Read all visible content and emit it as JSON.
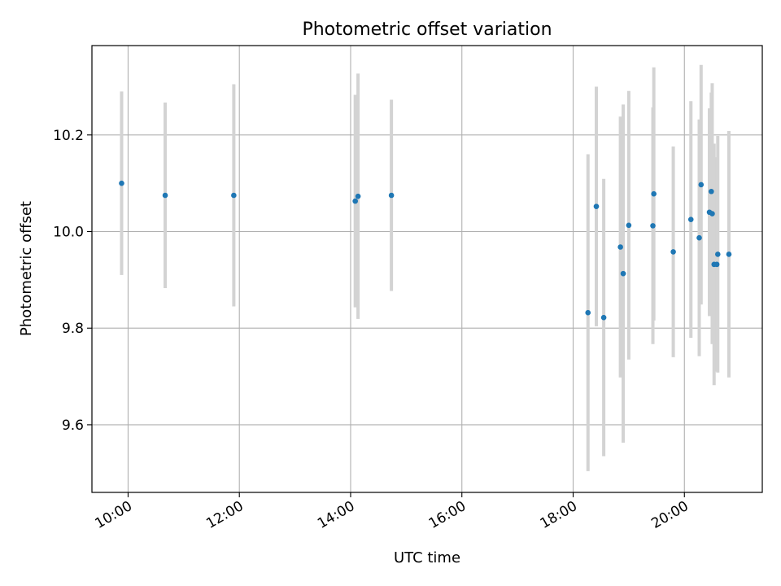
{
  "chart_data": {
    "type": "scatter",
    "title": "Photometric offset variation",
    "xlabel": "UTC time",
    "ylabel": "Photometric offset",
    "x_unit": "hours UTC",
    "xlim": [
      "09:21",
      "21:24"
    ],
    "ylim": [
      9.46,
      10.385
    ],
    "x_ticks": [
      "10:00",
      "12:00",
      "14:00",
      "16:00",
      "18:00",
      "20:00"
    ],
    "y_ticks": [
      "9.6",
      "9.8",
      "10.0",
      "10.2"
    ],
    "grid": true,
    "legend": "none",
    "marker_color": "#1f77b4",
    "errorbar_color": "#d3d3d3",
    "points": [
      {
        "x": "09:53",
        "y": 10.1,
        "err": 0.19
      },
      {
        "x": "10:40",
        "y": 10.075,
        "err": 0.192
      },
      {
        "x": "11:54",
        "y": 10.075,
        "err": 0.23
      },
      {
        "x": "14:05",
        "y": 10.063,
        "err": 0.22
      },
      {
        "x": "14:08",
        "y": 10.073,
        "err": 0.254
      },
      {
        "x": "14:44",
        "y": 10.075,
        "err": 0.198
      },
      {
        "x": "18:16",
        "y": 9.832,
        "err": 0.328
      },
      {
        "x": "18:25",
        "y": 10.052,
        "err": 0.248
      },
      {
        "x": "18:33",
        "y": 9.822,
        "err": 0.287
      },
      {
        "x": "18:51",
        "y": 9.968,
        "err": 0.27
      },
      {
        "x": "18:54",
        "y": 9.913,
        "err": 0.35
      },
      {
        "x": "19:00",
        "y": 10.013,
        "err": 0.278
      },
      {
        "x": "19:26",
        "y": 10.012,
        "err": 0.245
      },
      {
        "x": "19:27",
        "y": 10.078,
        "err": 0.262
      },
      {
        "x": "19:48",
        "y": 9.958,
        "err": 0.218
      },
      {
        "x": "20:07",
        "y": 10.025,
        "err": 0.245
      },
      {
        "x": "20:16",
        "y": 9.987,
        "err": 0.245
      },
      {
        "x": "20:18",
        "y": 10.097,
        "err": 0.248
      },
      {
        "x": "20:27",
        "y": 10.04,
        "err": 0.215
      },
      {
        "x": "20:29",
        "y": 10.083,
        "err": 0.205
      },
      {
        "x": "20:30",
        "y": 10.037,
        "err": 0.27
      },
      {
        "x": "20:32",
        "y": 9.932,
        "err": 0.25
      },
      {
        "x": "20:35",
        "y": 9.932,
        "err": 0.222
      },
      {
        "x": "20:36",
        "y": 9.953,
        "err": 0.245
      },
      {
        "x": "20:48",
        "y": 9.953,
        "err": 0.255
      }
    ]
  }
}
